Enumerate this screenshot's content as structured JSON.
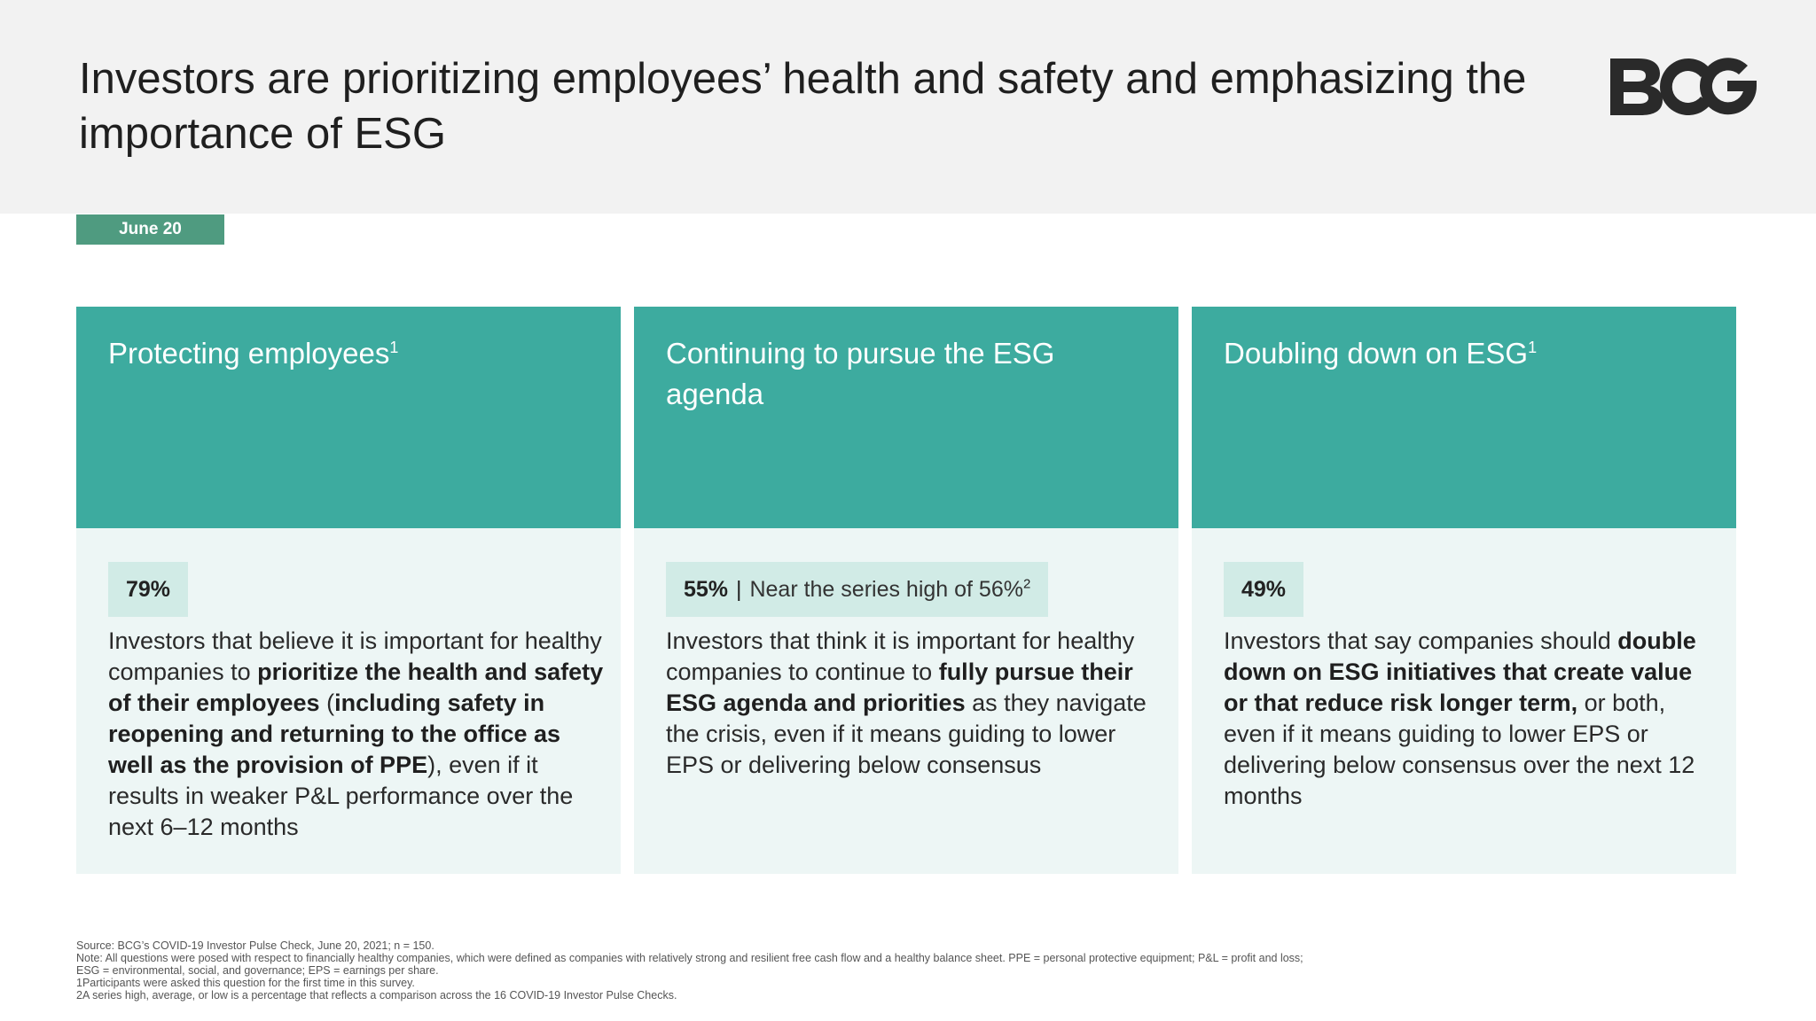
{
  "header": {
    "title": "Investors are prioritizing employees’ health and safety and emphasizing the importance of ESG",
    "logo_text": "BCG"
  },
  "date_tag": "June 20",
  "cards": [
    {
      "title": "Protecting employees",
      "title_sup": "1",
      "stat": "79%",
      "stat_note": "",
      "stat_note_sup": "",
      "desc_pre": "Investors that believe it is important for healthy companies to ",
      "desc_bold": "prioritize the health and safety of their employees",
      "desc_mid": " (",
      "desc_bold2": "including safety in reopening and returning to the office as well as the provision of PPE",
      "desc_post": "), even if it results in weaker P&L performance over the next 6–12 months"
    },
    {
      "title": "Continuing to pursue the ESG agenda",
      "title_sup": "",
      "stat": "55%",
      "stat_sep": "|",
      "stat_note": "Near the series high of 56%",
      "stat_note_sup": "2",
      "desc_pre": "Investors that think it is important for healthy companies to continue to ",
      "desc_bold": "fully pursue their ESG agenda and priorities",
      "desc_post": " as they navigate the crisis, even if it means guiding to lower EPS or delivering below consensus"
    },
    {
      "title": "Doubling down on ESG",
      "title_sup": "1",
      "stat": "49%",
      "stat_note": "",
      "stat_note_sup": "",
      "desc_pre": "Investors that say companies should ",
      "desc_bold": "double down on ESG initiatives that create value or that reduce risk longer term,",
      "desc_post": " or both, even if it means guiding to lower EPS or delivering below consensus over the next 12 months"
    }
  ],
  "footnotes": [
    "Source: BCG’s COVID-19 Investor Pulse Check, June 20, 2021; n = 150.",
    "Note: All questions were posed with respect to financially healthy companies, which were defined as companies with relatively strong and resilient free cash flow and a healthy balance sheet. PPE = personal protective equipment; P&L = profit and loss;",
    "ESG = environmental, social, and governance; EPS = earnings per share.",
    "1Participants were asked this question for the first time in this survey.",
    "2A series high, average, or low is a percentage that reflects a comparison across the 16 COVID-19 Investor Pulse Checks."
  ],
  "colors": {
    "header_bg": "#f2f2f2",
    "date_tag_bg": "#4f9b80",
    "card_head_bg": "#3dab9f",
    "card_body_bg": "#edf6f5",
    "stat_box_bg": "#d1ebe6",
    "logo": "#2a2a2a"
  }
}
